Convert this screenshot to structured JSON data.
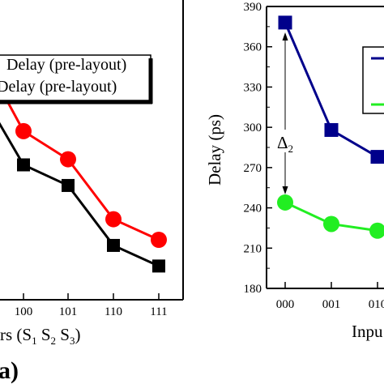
{
  "chart_data": [
    {
      "type": "line",
      "panel_label": "(a)",
      "xlabel_fragment": "rs (S",
      "xlabel_sub": [
        "1",
        "2",
        "3"
      ],
      "xlabel_close": ")",
      "categories": [
        "100",
        "101",
        "110",
        "111"
      ],
      "legend": [
        {
          "text": "Delay (pre-layout)",
          "color": "#000000",
          "marker": "square"
        },
        {
          "text": "Delay (pre-layout)",
          "color": "#ff0000",
          "marker": "circle"
        }
      ],
      "series": [
        {
          "color": "#000000",
          "marker": "square",
          "values": [
            0.72,
            0.61,
            0.29,
            0.18
          ]
        },
        {
          "color": "#ff0000",
          "marker": "circle",
          "values": [
            0.9,
            0.75,
            0.43,
            0.32
          ]
        }
      ],
      "visible_left_points": {
        "series0": 0.98,
        "series1": 1.18
      },
      "ylim": [
        0,
        1.6
      ]
    },
    {
      "type": "line",
      "ylabel": "Delay (ps)",
      "xlabel": "Inpu",
      "categories": [
        "000",
        "001",
        "010"
      ],
      "yticks": [
        180,
        210,
        240,
        270,
        300,
        330,
        360,
        390
      ],
      "ylim": [
        180,
        390
      ],
      "annotation": {
        "text": "Δ",
        "sub": "2"
      },
      "series": [
        {
          "color": "#00008b",
          "marker": "square",
          "values": [
            378,
            298,
            278
          ]
        },
        {
          "color": "#22ee22",
          "marker": "circle",
          "values": [
            244,
            228,
            223
          ]
        }
      ]
    }
  ]
}
